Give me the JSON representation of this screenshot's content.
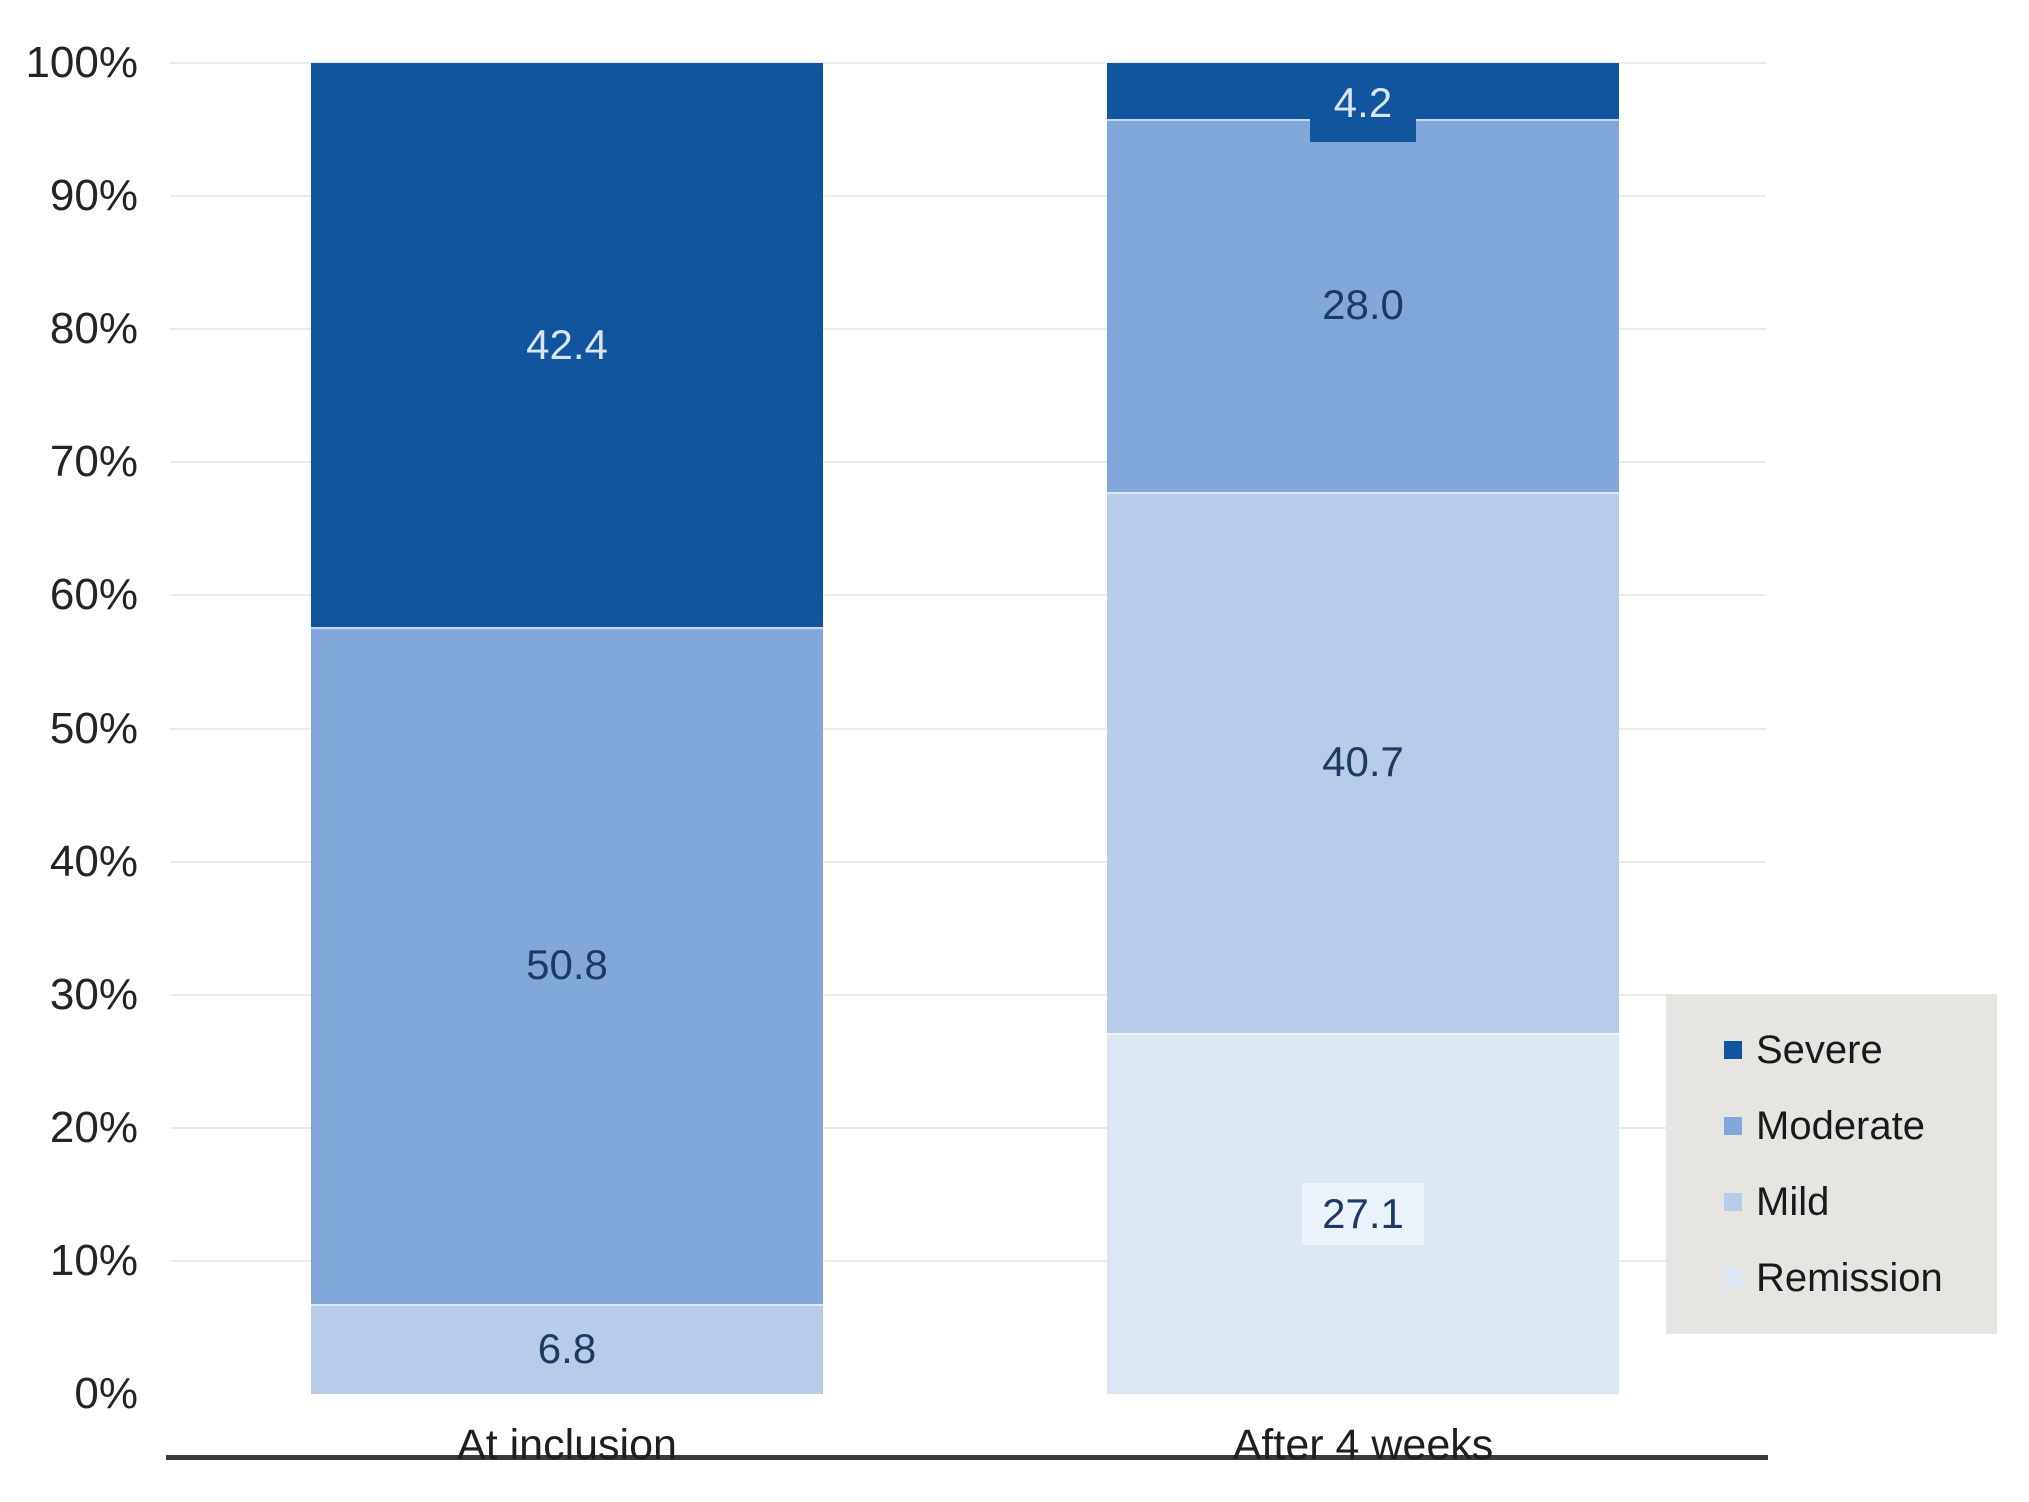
{
  "chart_data": {
    "type": "bar",
    "variant": "100-percent-stacked-column",
    "title": "",
    "categories": [
      "At inclusion",
      "After 4 weeks"
    ],
    "series": [
      {
        "name": "Severe",
        "color": "#11559F",
        "values": [
          42.4,
          4.2
        ],
        "labels": [
          "42.4",
          "4.2"
        ],
        "label_color": "#D9E4F2",
        "label_bg": false
      },
      {
        "name": "Moderate",
        "color": "#81A7DB",
        "values": [
          50.8,
          28.0
        ],
        "labels": [
          "50.8",
          "28.0"
        ],
        "label_color": "#1C3A63",
        "label_bg": false
      },
      {
        "name": "Mild",
        "color": "#B8CBE8",
        "values": [
          6.8,
          40.7
        ],
        "labels": [
          "6.8",
          "40.7"
        ],
        "label_color": "#1C3A63",
        "label_bg": false
      },
      {
        "name": "Remission",
        "color": "#DCE7F4",
        "values": [
          0,
          27.1
        ],
        "labels": [
          "",
          "27.1"
        ],
        "label_color": "#1C3A63",
        "label_bg": true
      }
    ],
    "y_axis": {
      "min": 0,
      "max": 100,
      "step": 10,
      "tick_labels": [
        "100%",
        "90%",
        "80%",
        "70%",
        "60%",
        "50%",
        "40%",
        "30%",
        "20%",
        "10%",
        "0%"
      ]
    },
    "legend": {
      "position": "right",
      "background": "#E7E5E2"
    },
    "grid": true,
    "colors": {
      "gridline": "#EBEBEB",
      "axis_line": "#3A3A3A",
      "tick_text": "#242424",
      "category_text": "#1F1F1F"
    }
  }
}
